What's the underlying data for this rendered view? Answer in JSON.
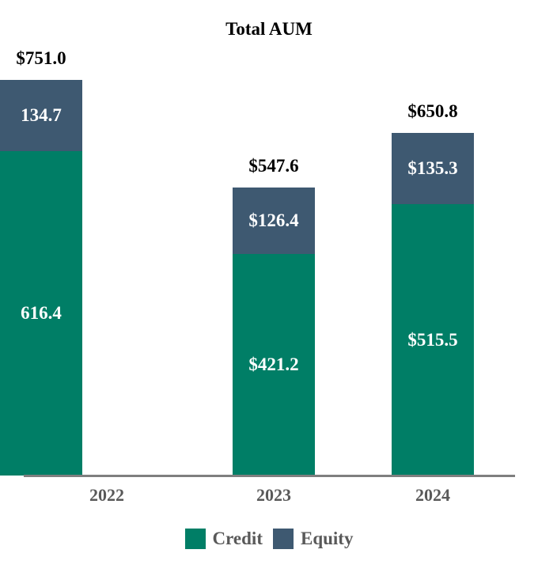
{
  "chart_data": {
    "type": "bar",
    "stacked": true,
    "title": "Total AUM",
    "categories": [
      "2022",
      "2023",
      "2024"
    ],
    "series": [
      {
        "name": "Credit",
        "values": [
          421.2,
          515.5,
          616.4
        ],
        "color": "#007E66"
      },
      {
        "name": "Equity",
        "values": [
          126.4,
          135.3,
          134.7
        ],
        "color": "#3E5971"
      }
    ],
    "totals": [
      547.6,
      650.8,
      751.0
    ],
    "totals_display": [
      "$547.6",
      "$650.8",
      "$751.0"
    ],
    "credit_labels_display": [
      "$421.2",
      "$515.5",
      "616.4"
    ],
    "equity_labels_display": [
      "$126.4",
      "$135.3",
      "134.7"
    ],
    "legend": [
      "Credit",
      "Equity"
    ],
    "legend_position": "bottom",
    "grid": false,
    "y_axis_visible": false,
    "value_label_color": "#ffffff",
    "total_label_color": "#000000",
    "category_label_color": "#595959",
    "axis_line_color": "#7f7f7f"
  }
}
